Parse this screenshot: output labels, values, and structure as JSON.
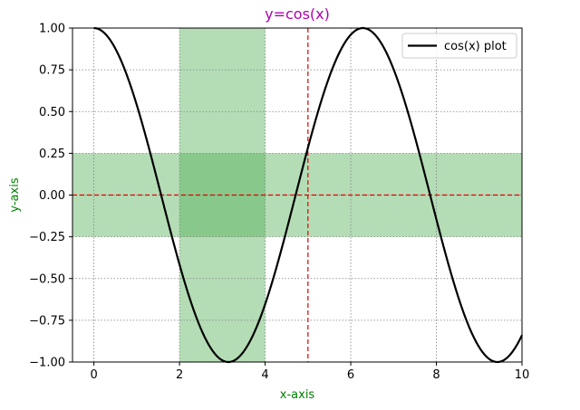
{
  "chart_data": {
    "type": "line",
    "title": "y=cos(x)",
    "xlabel": "x-axis",
    "ylabel": "y-axis",
    "xlim": [
      -0.5,
      10
    ],
    "ylim": [
      -1,
      1
    ],
    "x_ticks": [
      0,
      2,
      4,
      6,
      8,
      10
    ],
    "y_ticks": [
      -1.0,
      -0.75,
      -0.5,
      -0.25,
      0.0,
      0.25,
      0.5,
      0.75,
      1.0
    ],
    "x_tick_labels": [
      "0",
      "2",
      "4",
      "6",
      "8",
      "10"
    ],
    "y_tick_labels": [
      "−1.00",
      "−0.75",
      "−0.50",
      "−0.25",
      "0.00",
      "0.25",
      "0.50",
      "0.75",
      "1.00"
    ],
    "grid": true,
    "legend_position": "top-right",
    "series": [
      {
        "name": "cos(x) plot",
        "function": "cos(x)",
        "x_range": [
          0,
          10
        ],
        "color": "#000000"
      }
    ],
    "shaded_regions": [
      {
        "orientation": "vertical",
        "from": 2,
        "to": 4,
        "color": "#4caf50",
        "opacity": 0.42
      },
      {
        "orientation": "horizontal",
        "from": -0.25,
        "to": 0.25,
        "color": "#4caf50",
        "opacity": 0.42
      }
    ],
    "reference_lines": [
      {
        "orientation": "vertical",
        "value": 5,
        "color": "#e00000",
        "style": "dashed"
      },
      {
        "orientation": "horizontal",
        "value": 0,
        "color": "#e00000",
        "style": "dashed"
      }
    ],
    "colors": {
      "title": "#b000b0",
      "axis_label": "#008000",
      "grid": "#808080"
    }
  }
}
